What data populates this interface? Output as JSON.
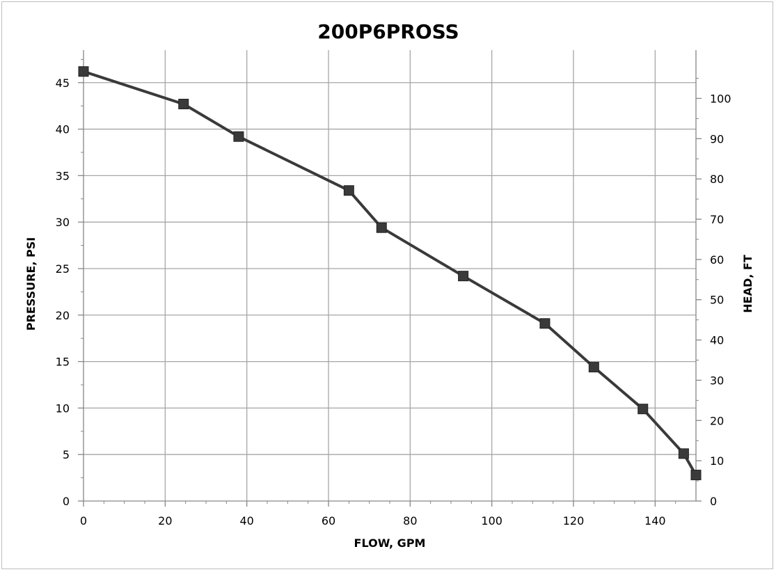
{
  "chart_data": {
    "type": "line",
    "title": "200P6PROSS",
    "xlabel": "FLOW, GPM",
    "ylabel": "PRESSURE, PSI",
    "y2label": "HEAD, FT",
    "xlim": [
      0,
      150
    ],
    "ylim": [
      0,
      48.5
    ],
    "y2lim": [
      0,
      112
    ],
    "x_ticks": [
      0,
      20,
      40,
      60,
      80,
      100,
      120,
      140
    ],
    "y_ticks": [
      0,
      5,
      10,
      15,
      20,
      25,
      30,
      35,
      40,
      45
    ],
    "y2_ticks": [
      0,
      10,
      20,
      30,
      40,
      50,
      60,
      70,
      80,
      90,
      100
    ],
    "grid": true,
    "legend": false,
    "series": [
      {
        "x": [
          0,
          24.5,
          38,
          65,
          73,
          93,
          113,
          125,
          137,
          147,
          150
        ],
        "y": [
          46.2,
          42.7,
          39.2,
          33.4,
          29.4,
          24.2,
          19.1,
          14.4,
          9.9,
          5.1,
          2.8
        ]
      }
    ],
    "colors": {
      "line": "#3a3a3a",
      "marker": "#3a3a3a",
      "grid": "#a6a6a6",
      "axis": "#868686"
    }
  }
}
